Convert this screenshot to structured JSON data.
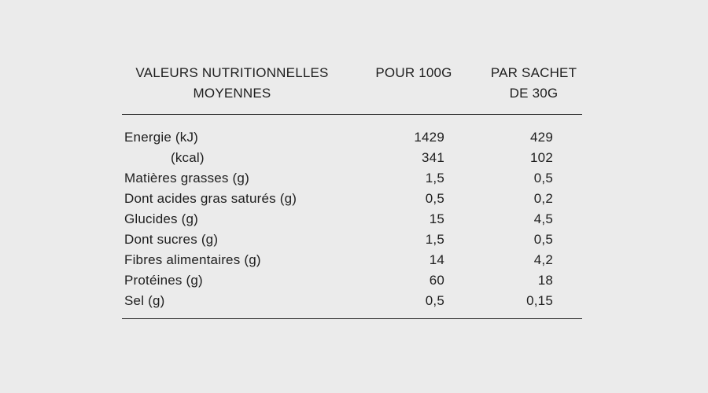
{
  "colors": {
    "background": "#ebebeb",
    "text": "#1e1e1e",
    "rule": "#1c1c1c"
  },
  "table": {
    "header": {
      "labels_column": "VALEURS NUTRITIONNELLES MOYENNES",
      "per_100g_column": "POUR 100G",
      "per_sachet_column": "PAR SACHET DE 30G"
    },
    "rows": [
      {
        "label": "Energie (kJ)",
        "per_100g": "1429",
        "per_sachet": "429"
      },
      {
        "label": "(kcal)",
        "per_100g": "341",
        "per_sachet": "102"
      },
      {
        "label": "Matières grasses (g)",
        "per_100g": "1,5",
        "per_sachet": "0,5"
      },
      {
        "label": "Dont acides gras saturés (g)",
        "per_100g": "0,5",
        "per_sachet": "0,2"
      },
      {
        "label": "Glucides (g)",
        "per_100g": "15",
        "per_sachet": "4,5"
      },
      {
        "label": "Dont sucres (g)",
        "per_100g": "1,5",
        "per_sachet": "0,5"
      },
      {
        "label": "Fibres alimentaires (g)",
        "per_100g": "14",
        "per_sachet": "4,2"
      },
      {
        "label": "Protéines (g)",
        "per_100g": "60",
        "per_sachet": "18"
      },
      {
        "label": "Sel (g)",
        "per_100g": "0,5",
        "per_sachet": "0,15"
      }
    ]
  }
}
